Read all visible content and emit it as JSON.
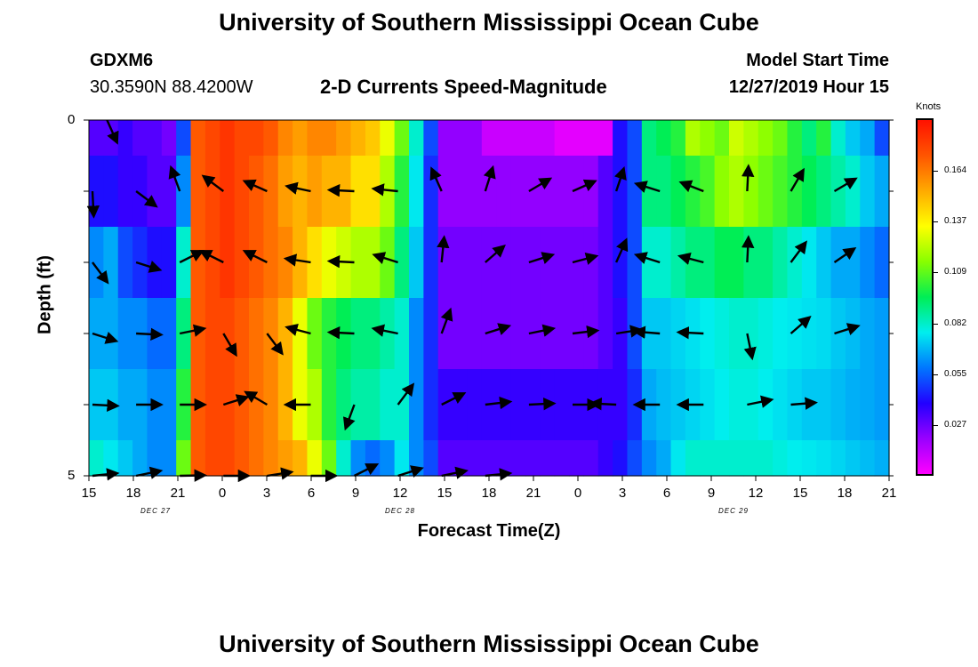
{
  "header": {
    "title": "University of Southern Mississippi Ocean Cube",
    "station": "GDXM6",
    "coords": "30.3590N 88.4200W",
    "subtitle": "2-D Currents Speed-Magnitude",
    "model_start_label": "Model Start Time",
    "model_start_value": "12/27/2019 Hour 15"
  },
  "footer": {
    "title": "University of Southern Mississippi Ocean Cube"
  },
  "chart_data": {
    "type": "heatmap",
    "xlabel": "Forecast Time(Z)",
    "ylabel": "Depth (ft)",
    "y_ticks": [
      "0",
      "5"
    ],
    "x_tick_labels": [
      "15",
      "18",
      "21",
      "0",
      "3",
      "6",
      "9",
      "12",
      "15",
      "18",
      "21",
      "0",
      "3",
      "6",
      "9",
      "12",
      "15",
      "18",
      "21"
    ],
    "date_labels": [
      "DEC 27",
      "DEC 28",
      "DEC 29"
    ],
    "colorbar": {
      "unit": "Knots",
      "ticks": [
        "0.164",
        "0.137",
        "0.109",
        "0.082",
        "0.055",
        "0.027"
      ],
      "range": [
        0.0,
        0.19
      ],
      "colors": [
        "#ff00ff",
        "#9900ff",
        "#2200ff",
        "#0077ff",
        "#00eeee",
        "#00ee55",
        "#88ff00",
        "#ffff00",
        "#ffaa00",
        "#ff5500",
        "#ff1100"
      ]
    },
    "hours": [
      15,
      16,
      17,
      18,
      19,
      20,
      21,
      22,
      23,
      0,
      1,
      2,
      3,
      4,
      5,
      6,
      7,
      8,
      9,
      10,
      11,
      12,
      13,
      14,
      15,
      16,
      17,
      18,
      19,
      20,
      21,
      22,
      23,
      0,
      1,
      2,
      3,
      4,
      5,
      6,
      7,
      8,
      9,
      10,
      11,
      12,
      13,
      14,
      15,
      16,
      17,
      18,
      19,
      20,
      21
    ],
    "depth_rows": [
      [
        0.03,
        0.03,
        0.035,
        0.03,
        0.03,
        0.025,
        0.05,
        0.17,
        0.175,
        0.18,
        0.175,
        0.175,
        0.17,
        0.16,
        0.155,
        0.16,
        0.16,
        0.155,
        0.15,
        0.145,
        0.13,
        0.11,
        0.08,
        0.05,
        0.02,
        0.02,
        0.02,
        0.01,
        0.01,
        0.01,
        0.01,
        0.01,
        0.005,
        0.005,
        0.005,
        0.005,
        0.04,
        0.05,
        0.09,
        0.095,
        0.1,
        0.12,
        0.115,
        0.11,
        0.125,
        0.12,
        0.115,
        0.11,
        0.1,
        0.09,
        0.1,
        0.08,
        0.07,
        0.065,
        0.05
      ],
      [
        0.04,
        0.04,
        0.035,
        0.035,
        0.03,
        0.03,
        0.06,
        0.17,
        0.175,
        0.18,
        0.175,
        0.17,
        0.165,
        0.155,
        0.15,
        0.155,
        0.15,
        0.15,
        0.14,
        0.14,
        0.12,
        0.1,
        0.075,
        0.045,
        0.02,
        0.02,
        0.02,
        0.02,
        0.02,
        0.02,
        0.02,
        0.02,
        0.02,
        0.02,
        0.02,
        0.03,
        0.04,
        0.05,
        0.09,
        0.09,
        0.095,
        0.1,
        0.105,
        0.115,
        0.12,
        0.115,
        0.11,
        0.105,
        0.1,
        0.095,
        0.09,
        0.085,
        0.08,
        0.07,
        0.065
      ],
      [
        0.06,
        0.065,
        0.05,
        0.045,
        0.04,
        0.04,
        0.08,
        0.17,
        0.175,
        0.18,
        0.175,
        0.17,
        0.165,
        0.16,
        0.15,
        0.14,
        0.13,
        0.125,
        0.12,
        0.12,
        0.11,
        0.09,
        0.07,
        0.045,
        0.025,
        0.025,
        0.025,
        0.025,
        0.025,
        0.025,
        0.025,
        0.025,
        0.025,
        0.025,
        0.025,
        0.03,
        0.04,
        0.05,
        0.08,
        0.08,
        0.085,
        0.09,
        0.09,
        0.095,
        0.095,
        0.09,
        0.09,
        0.085,
        0.08,
        0.075,
        0.07,
        0.065,
        0.065,
        0.06,
        0.055
      ],
      [
        0.065,
        0.065,
        0.06,
        0.06,
        0.055,
        0.055,
        0.09,
        0.17,
        0.175,
        0.175,
        0.17,
        0.165,
        0.16,
        0.15,
        0.13,
        0.11,
        0.1,
        0.095,
        0.09,
        0.09,
        0.085,
        0.08,
        0.06,
        0.045,
        0.025,
        0.025,
        0.025,
        0.025,
        0.025,
        0.025,
        0.025,
        0.025,
        0.025,
        0.025,
        0.025,
        0.03,
        0.035,
        0.05,
        0.07,
        0.07,
        0.072,
        0.074,
        0.076,
        0.078,
        0.08,
        0.08,
        0.078,
        0.076,
        0.075,
        0.074,
        0.073,
        0.07,
        0.068,
        0.065,
        0.063
      ],
      [
        0.07,
        0.07,
        0.065,
        0.065,
        0.06,
        0.06,
        0.1,
        0.17,
        0.175,
        0.175,
        0.17,
        0.165,
        0.16,
        0.15,
        0.13,
        0.12,
        0.1,
        0.09,
        0.085,
        0.085,
        0.08,
        0.08,
        0.06,
        0.045,
        0.035,
        0.035,
        0.035,
        0.035,
        0.035,
        0.035,
        0.035,
        0.035,
        0.035,
        0.035,
        0.035,
        0.035,
        0.035,
        0.045,
        0.065,
        0.068,
        0.07,
        0.072,
        0.074,
        0.076,
        0.078,
        0.078,
        0.076,
        0.074,
        0.072,
        0.07,
        0.07,
        0.068,
        0.066,
        0.065,
        0.063
      ],
      [
        0.08,
        0.075,
        0.07,
        0.065,
        0.06,
        0.06,
        0.11,
        0.17,
        0.175,
        0.175,
        0.17,
        0.165,
        0.16,
        0.155,
        0.15,
        0.13,
        0.11,
        0.08,
        0.06,
        0.055,
        0.06,
        0.075,
        0.06,
        0.05,
        0.03,
        0.03,
        0.03,
        0.03,
        0.03,
        0.03,
        0.03,
        0.03,
        0.03,
        0.03,
        0.03,
        0.035,
        0.04,
        0.05,
        0.06,
        0.065,
        0.075,
        0.08,
        0.08,
        0.08,
        0.08,
        0.08,
        0.08,
        0.078,
        0.076,
        0.075,
        0.074,
        0.072,
        0.07,
        0.068,
        0.066
      ]
    ],
    "arrow_levels": [
      {
        "depth_index": 0,
        "arrows": [
          [
            1,
            0.4,
            0.9
          ]
        ]
      },
      {
        "depth_index": 1,
        "arrows": [
          [
            0,
            0.05,
            1
          ],
          [
            3,
            0.8,
            0.6
          ],
          [
            6,
            -0.35,
            -0.95
          ],
          [
            9,
            -0.8,
            -0.6
          ],
          [
            12,
            -0.9,
            -0.4
          ],
          [
            15,
            -0.95,
            -0.2
          ],
          [
            18,
            -1,
            -0.05
          ],
          [
            21,
            -0.98,
            -0.1
          ],
          [
            24,
            -0.4,
            -0.9
          ],
          [
            27,
            0.3,
            -0.95
          ],
          [
            30,
            0.85,
            -0.5
          ],
          [
            33,
            0.9,
            -0.4
          ],
          [
            36,
            0.3,
            -0.9
          ],
          [
            39,
            -0.95,
            -0.3
          ],
          [
            42,
            -0.9,
            -0.35
          ],
          [
            45,
            0.05,
            -1
          ],
          [
            48,
            0.5,
            -0.85
          ],
          [
            51,
            0.85,
            -0.5
          ]
        ]
      },
      {
        "depth_index": 2,
        "arrows": [
          [
            0,
            0.6,
            0.8
          ],
          [
            3,
            0.95,
            0.3
          ],
          [
            6,
            0.9,
            -0.45
          ],
          [
            9,
            -0.9,
            -0.45
          ],
          [
            12,
            -0.9,
            -0.45
          ],
          [
            15,
            -1,
            -0.15
          ],
          [
            18,
            -1,
            -0.05
          ],
          [
            21,
            -0.95,
            -0.3
          ],
          [
            24,
            0.1,
            -1
          ],
          [
            27,
            0.75,
            -0.65
          ],
          [
            30,
            0.95,
            -0.3
          ],
          [
            33,
            0.95,
            -0.25
          ],
          [
            36,
            0.4,
            -0.9
          ],
          [
            39,
            -0.95,
            -0.3
          ],
          [
            42,
            -0.95,
            -0.25
          ],
          [
            45,
            0.05,
            -1
          ],
          [
            48,
            0.6,
            -0.8
          ],
          [
            51,
            0.8,
            -0.55
          ]
        ]
      },
      {
        "depth_index": 3,
        "arrows": [
          [
            0,
            0.95,
            0.3
          ],
          [
            3,
            1,
            0.05
          ],
          [
            6,
            0.98,
            -0.2
          ],
          [
            9,
            0.5,
            0.85
          ],
          [
            12,
            0.6,
            0.8
          ],
          [
            15,
            -0.95,
            -0.25
          ],
          [
            18,
            -1,
            -0.05
          ],
          [
            21,
            -0.98,
            -0.2
          ],
          [
            24,
            0.35,
            -0.95
          ],
          [
            27,
            0.95,
            -0.3
          ],
          [
            30,
            0.98,
            -0.2
          ],
          [
            33,
            0.99,
            -0.12
          ],
          [
            36,
            0.98,
            -0.15
          ],
          [
            39,
            -1,
            -0.08
          ],
          [
            42,
            -1,
            -0.05
          ],
          [
            45,
            0.2,
            0.98
          ],
          [
            48,
            0.75,
            -0.65
          ],
          [
            51,
            0.95,
            -0.3
          ]
        ]
      },
      {
        "depth_index": 4,
        "arrows": [
          [
            0,
            1,
            0.05
          ],
          [
            3,
            1,
            0
          ],
          [
            6,
            1,
            0
          ],
          [
            9,
            0.95,
            -0.3
          ],
          [
            12,
            -0.85,
            -0.5
          ],
          [
            15,
            -1,
            0
          ],
          [
            18,
            -0.35,
            0.95
          ],
          [
            21,
            0.6,
            -0.8
          ],
          [
            24,
            0.9,
            -0.45
          ],
          [
            27,
            0.99,
            -0.12
          ],
          [
            30,
            1,
            -0.05
          ],
          [
            33,
            1,
            0
          ],
          [
            36,
            -1,
            -0.05
          ],
          [
            39,
            -1,
            0
          ],
          [
            42,
            -1,
            0
          ],
          [
            45,
            0.98,
            -0.2
          ],
          [
            48,
            0.99,
            -0.08
          ]
        ]
      },
      {
        "depth_index": 5,
        "arrows": [
          [
            0,
            0.99,
            -0.1
          ],
          [
            3,
            0.98,
            -0.2
          ],
          [
            6,
            1,
            -0.02
          ],
          [
            9,
            1,
            0
          ],
          [
            12,
            0.98,
            -0.15
          ],
          [
            15,
            1,
            0
          ],
          [
            18,
            0.9,
            -0.45
          ],
          [
            21,
            0.95,
            -0.3
          ],
          [
            24,
            0.98,
            -0.2
          ],
          [
            27,
            0.99,
            -0.1
          ]
        ]
      }
    ]
  }
}
